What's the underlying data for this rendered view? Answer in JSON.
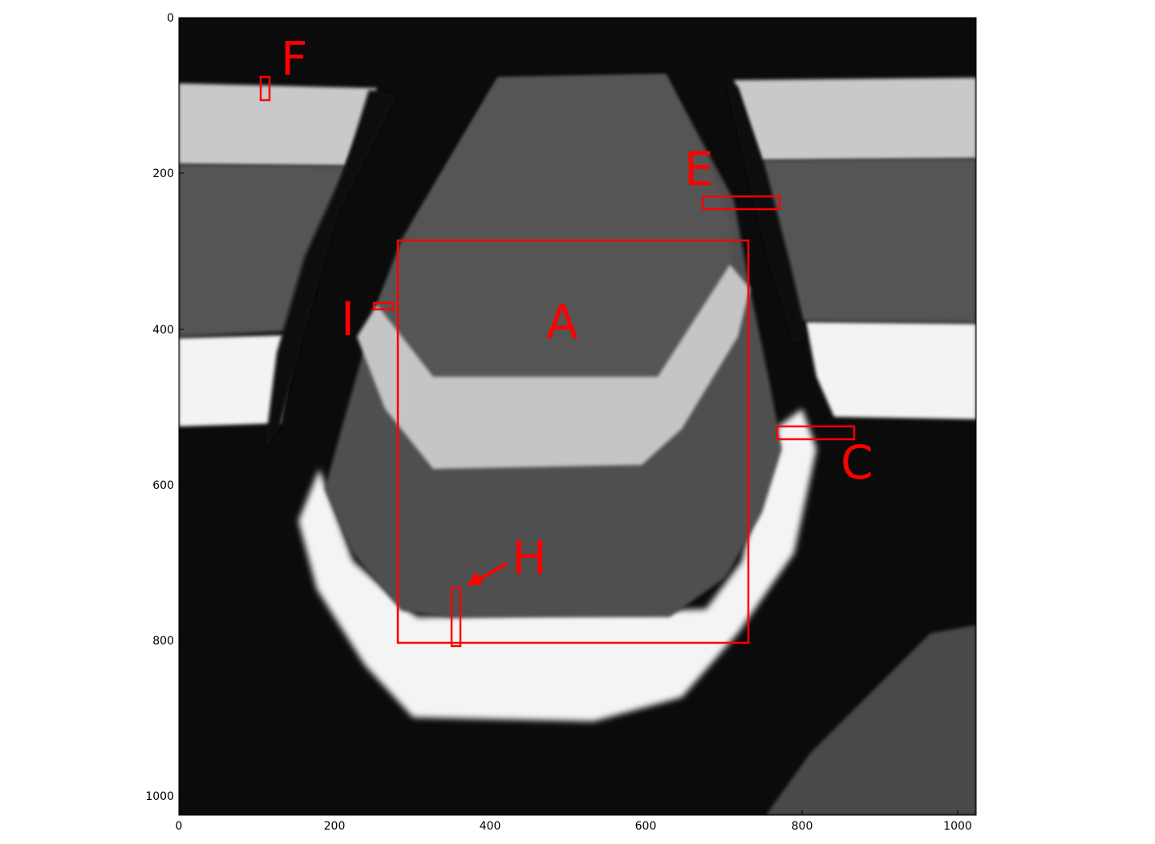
{
  "figure": {
    "x_ticks": [
      "0",
      "200",
      "400",
      "600",
      "800",
      "1000"
    ],
    "y_ticks": [
      "0",
      "200",
      "400",
      "600",
      "800",
      "1000"
    ],
    "region_labels": {
      "A": "A",
      "C": "C",
      "E": "E",
      "F": "F",
      "H": "H",
      "I": "I"
    },
    "colors": {
      "annotation": "#ff0000",
      "background": "#0a0a0a",
      "dark_gray": "#4b4b4b",
      "mid_gray": "#5c5c5c",
      "light_gray": "#c8c8c8",
      "white": "#f2f2f2"
    }
  }
}
